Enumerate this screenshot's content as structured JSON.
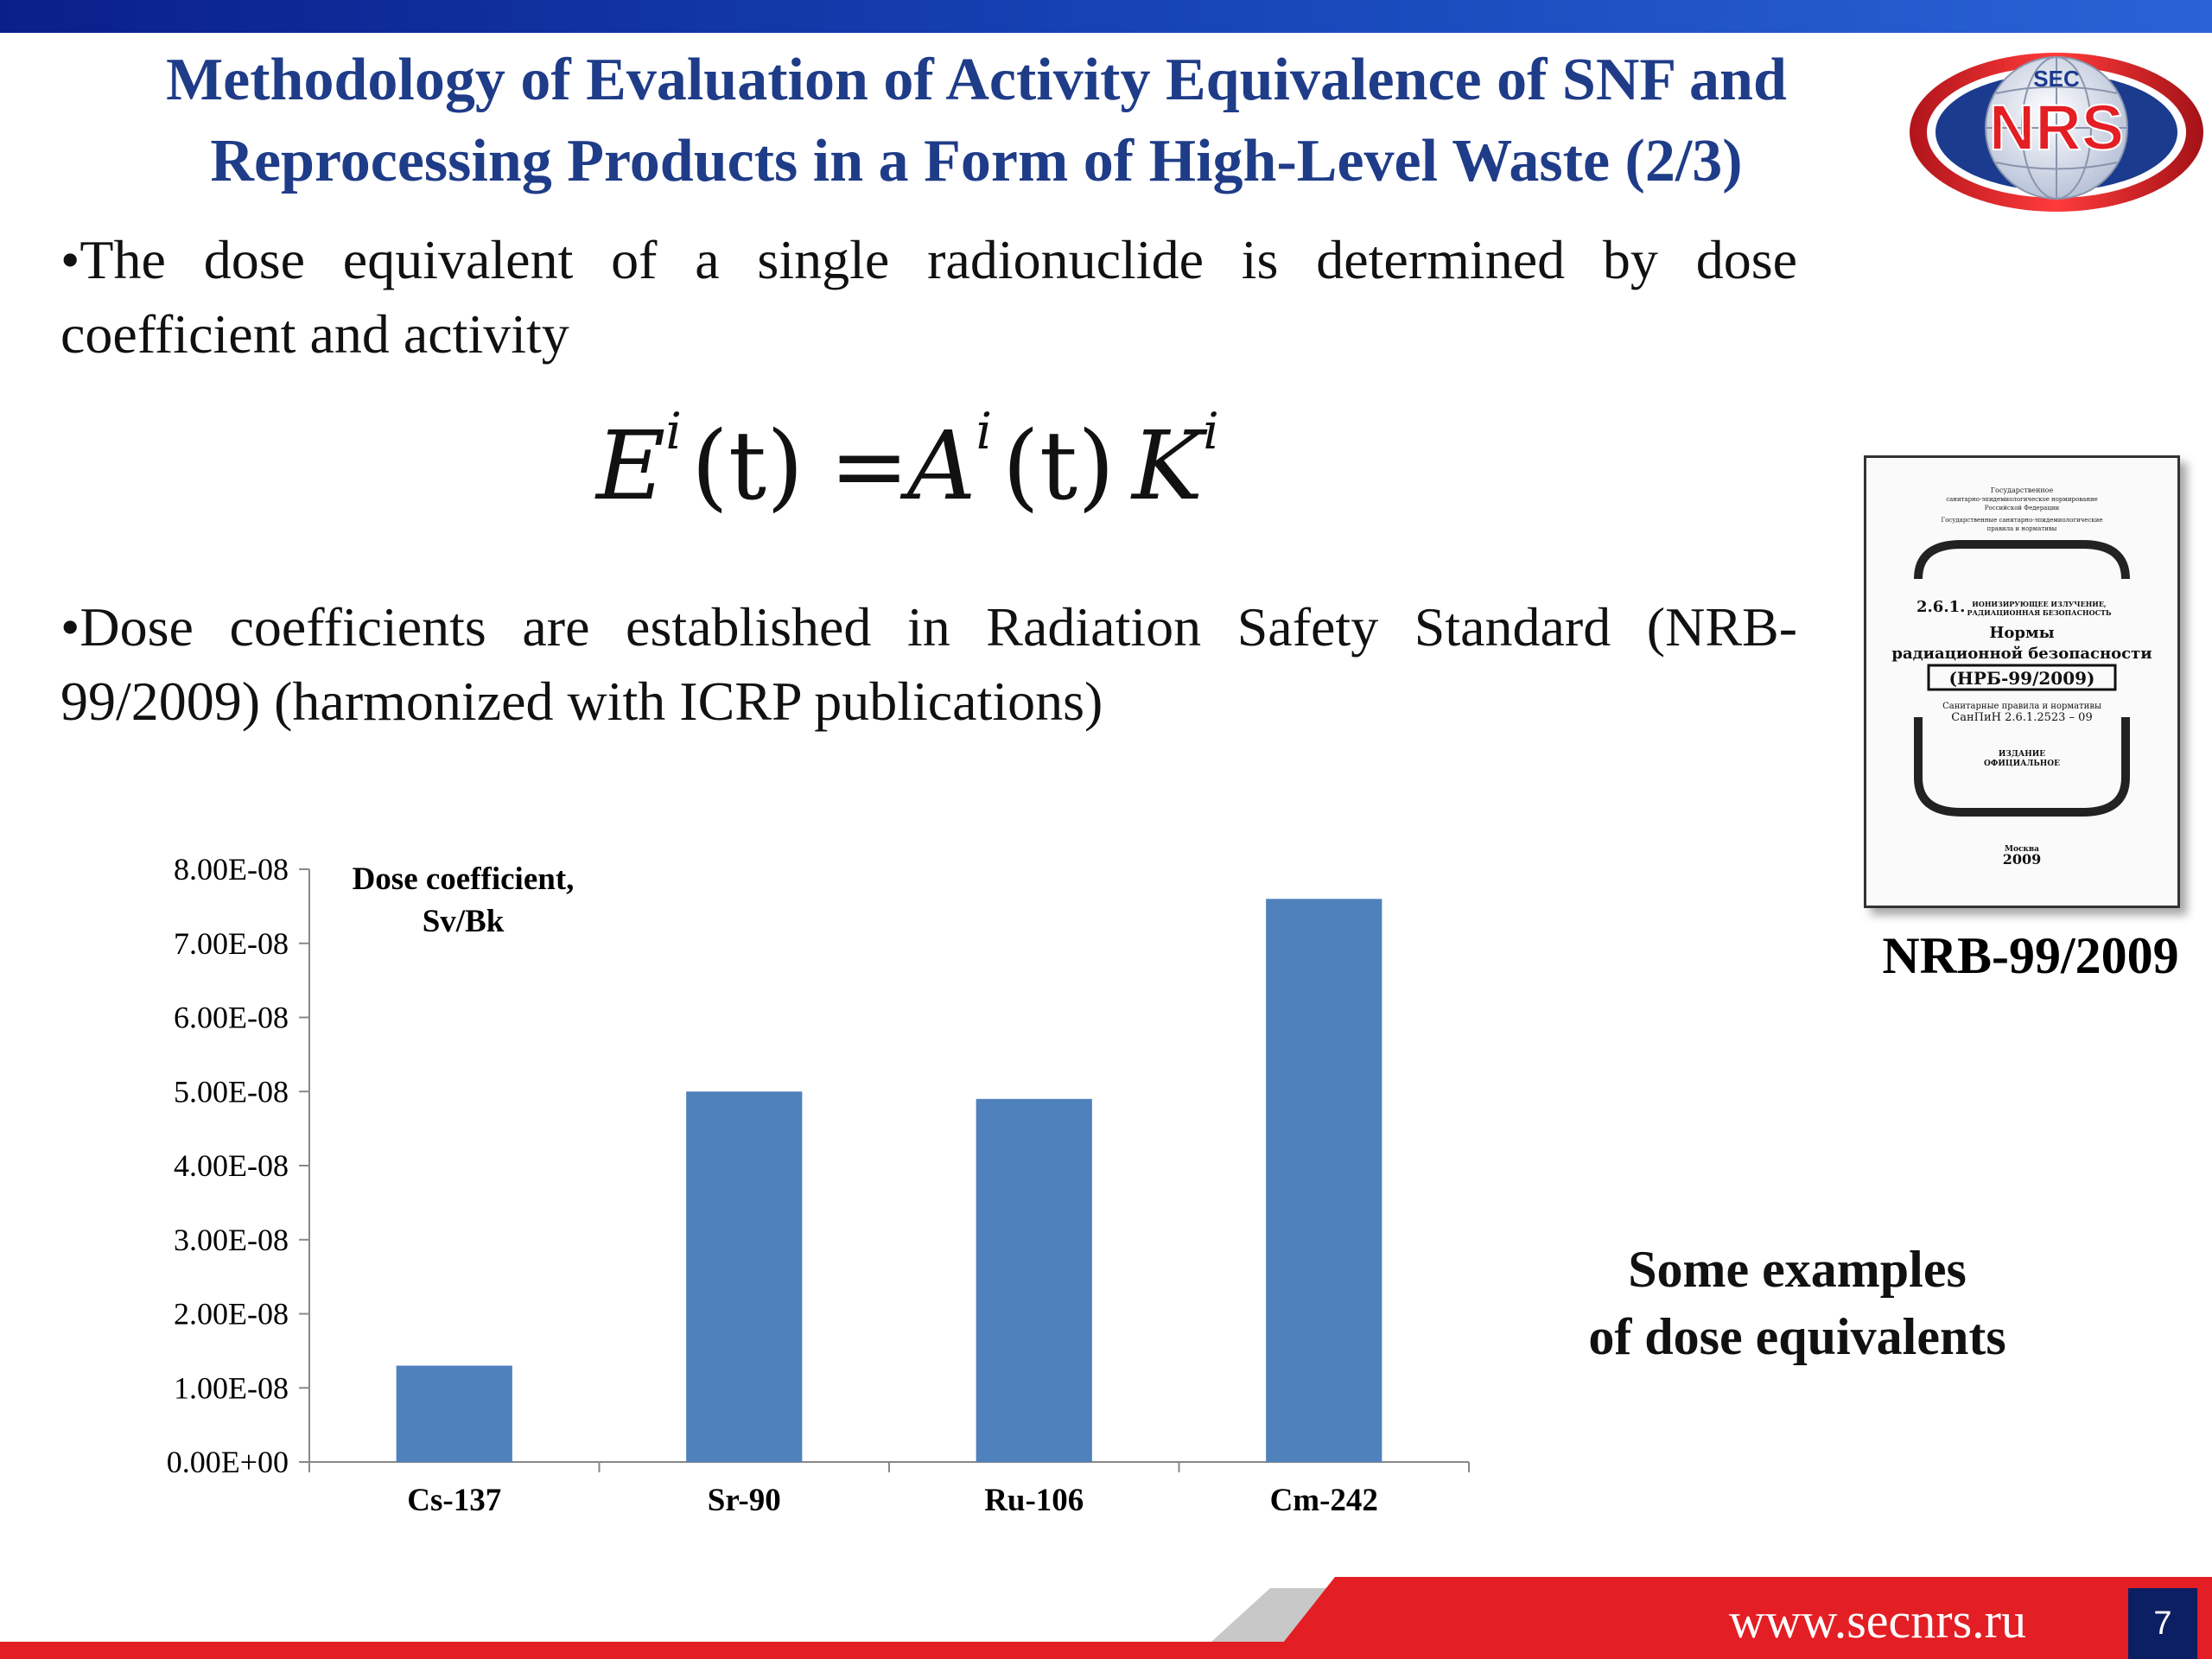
{
  "slide": {
    "title_line1": "Methodology of Evaluation of Activity Equivalence of SNF and",
    "title_line2": "Reprocessing Products in a Form of High-Level Waste (2/3)",
    "bullet1": "•The dose equivalent of a single radionuclide is determined by dose coefficient and activity",
    "bullet2": "•Dose coefficients are established in Radiation Safety Standard (NRB-99/2009) (harmonized with ICRP publications)",
    "formula": {
      "E": "E",
      "A": "A",
      "K": "K",
      "i": "i",
      "lparen_t1": "(t)",
      "equals": "=",
      "lparen_t2": "(t)"
    },
    "book_label": "NRB-99/2009",
    "side_note_line1": "Some examples",
    "side_note_line2": "of dose equivalents",
    "footer_url": "www.secnrs.ru",
    "page_number": "7"
  },
  "logo": {
    "top_text": "SEC",
    "main_text": "NRS"
  },
  "book_cover": {
    "line1": "Государственное",
    "line2": "санитарно-эпидемиологическое нормирование",
    "line3": "Российской Федерации",
    "line4": "Государственные санитарно-эпидемиологические",
    "line5": "правила и нормативы",
    "section": "2.6.1.",
    "subtitle1": "ИОНИЗИРУЮЩЕЕ ИЗЛУЧЕНИЕ,",
    "subtitle2": "РАДИАЦИОННАЯ БЕЗОПАСНОСТЬ",
    "main1": "Нормы",
    "main2": "радиационной безопасности",
    "main3": "(НРБ-99/2009)",
    "rules": "Санитарные правила и нормативы",
    "code": "СанПиН 2.6.1.2523 – 09",
    "edition1": "ИЗДАНИЕ",
    "edition2": "ОФИЦИАЛЬНОЕ",
    "city": "Москва",
    "year": "2009"
  },
  "colors": {
    "title": "#1f3c88",
    "bar": "#4f81bd",
    "footer_red": "#e31e24",
    "page_box": "#0c1f63"
  },
  "chart_data": {
    "type": "bar",
    "title": "Dose coefficient, Sv/Bk",
    "title_line1": "Dose coefficient,",
    "title_line2": "Sv/Bk",
    "categories": [
      "Cs-137",
      "Sr-90",
      "Ru-106",
      "Cm-242"
    ],
    "values": [
      1.3e-08,
      5e-08,
      4.9e-08,
      7.6e-08
    ],
    "ylim": [
      0,
      8e-08
    ],
    "yticks": [
      0,
      1e-08,
      2e-08,
      3e-08,
      4e-08,
      5e-08,
      6e-08,
      7e-08,
      8e-08
    ],
    "ytick_labels": [
      "0.00E+00",
      "1.00E-08",
      "2.00E-08",
      "3.00E-08",
      "4.00E-08",
      "5.00E-08",
      "6.00E-08",
      "7.00E-08",
      "8.00E-08"
    ],
    "xlabel": "",
    "ylabel": "",
    "grid": false,
    "legend": "none"
  }
}
